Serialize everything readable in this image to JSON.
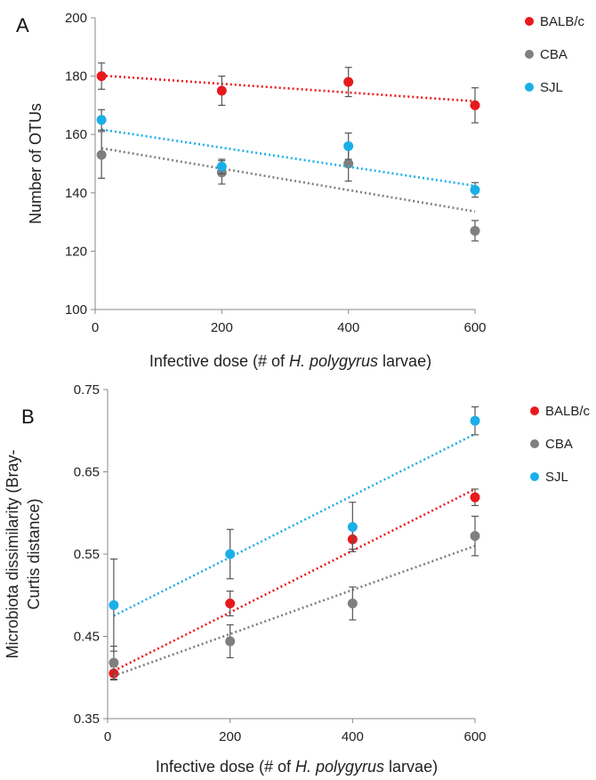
{
  "chart_data": [
    {
      "panel": "A",
      "type": "scatter",
      "xlabel_parts": [
        "Infective dose (# of ",
        "H. polygyrus",
        " larvae)"
      ],
      "ylabel": [
        "Number of OTUs"
      ],
      "xlim": [
        0,
        600
      ],
      "ylim": [
        100,
        200
      ],
      "xticks": [
        0,
        200,
        400,
        600
      ],
      "yticks": [
        100,
        120,
        140,
        160,
        180,
        200
      ],
      "ytick_decimals": 0,
      "legend_position": "top-right",
      "series": [
        {
          "name": "BALB/c",
          "color": "#e8191c",
          "x": [
            10,
            200,
            400,
            600
          ],
          "y": [
            180,
            175,
            178,
            170
          ],
          "err": [
            4.5,
            5,
            5,
            6
          ],
          "trend": [
            180.2,
            171.4
          ]
        },
        {
          "name": "CBA",
          "color": "#7f7f7f",
          "x": [
            10,
            200,
            400,
            600
          ],
          "y": [
            153,
            147,
            150,
            127
          ],
          "err": [
            8,
            4,
            6,
            3.5
          ],
          "trend": [
            155.3,
            133.6
          ]
        },
        {
          "name": "SJL",
          "color": "#1bafe8",
          "x": [
            10,
            200,
            400,
            600
          ],
          "y": [
            165,
            149,
            156,
            141
          ],
          "err": [
            3.5,
            2.5,
            4.5,
            2.5
          ],
          "trend": [
            161.7,
            142.4
          ]
        }
      ]
    },
    {
      "panel": "B",
      "type": "scatter",
      "xlabel_parts": [
        "Infective dose (# of ",
        "H. polygyrus",
        " larvae)"
      ],
      "ylabel": [
        "Microbiota dissimilarity (Bray-",
        "Curtis distance)"
      ],
      "xlim": [
        0,
        600
      ],
      "ylim": [
        0.35,
        0.75
      ],
      "xticks": [
        0,
        200,
        400,
        600
      ],
      "yticks": [
        0.35,
        0.45,
        0.55,
        0.65,
        0.75
      ],
      "ytick_decimals": 2,
      "legend_position": "top-right",
      "series": [
        {
          "name": "BALB/c",
          "color": "#e8191c",
          "x": [
            10,
            200,
            400,
            600
          ],
          "y": [
            0.405,
            0.49,
            0.568,
            0.619
          ],
          "err": [
            0.008,
            0.015,
            0.012,
            0.01
          ],
          "trend": [
            0.408,
            0.629
          ]
        },
        {
          "name": "CBA",
          "color": "#7f7f7f",
          "x": [
            10,
            200,
            400,
            600
          ],
          "y": [
            0.418,
            0.444,
            0.49,
            0.572
          ],
          "err": [
            0.02,
            0.02,
            0.02,
            0.024
          ],
          "trend": [
            0.402,
            0.56
          ]
        },
        {
          "name": "SJL",
          "color": "#1bafe8",
          "x": [
            10,
            200,
            400,
            600
          ],
          "y": [
            0.488,
            0.55,
            0.583,
            0.712
          ],
          "err": [
            0.056,
            0.03,
            0.03,
            0.017
          ],
          "trend": [
            0.475,
            0.696
          ]
        }
      ]
    }
  ]
}
